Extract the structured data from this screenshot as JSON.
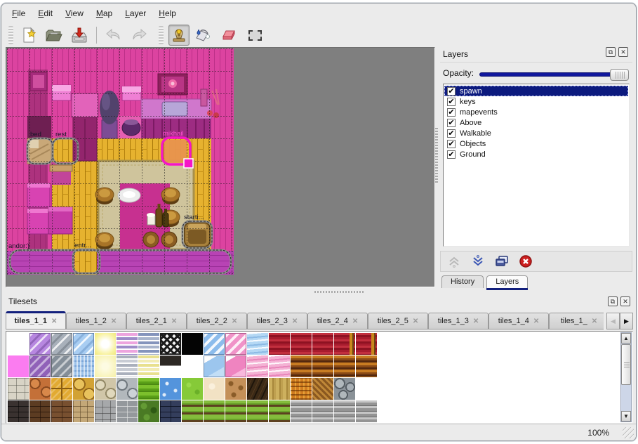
{
  "menu": {
    "items": [
      {
        "label": "File"
      },
      {
        "label": "Edit"
      },
      {
        "label": "View"
      },
      {
        "label": "Map"
      },
      {
        "label": "Layer"
      },
      {
        "label": "Help"
      }
    ]
  },
  "toolbar": {
    "buttons": [
      {
        "name": "new-map",
        "icon": "new-file-icon",
        "enabled": true,
        "active": false
      },
      {
        "name": "open",
        "icon": "open-folder-icon",
        "enabled": true,
        "active": false
      },
      {
        "name": "save",
        "icon": "save-icon",
        "enabled": true,
        "active": false
      },
      {
        "name": "undo",
        "icon": "undo-icon",
        "enabled": false,
        "active": false
      },
      {
        "name": "redo",
        "icon": "redo-icon",
        "enabled": false,
        "active": false
      },
      {
        "name": "stamp-brush",
        "icon": "stamp-icon",
        "enabled": true,
        "active": true
      },
      {
        "name": "bucket-fill",
        "icon": "bucket-icon",
        "enabled": true,
        "active": false
      },
      {
        "name": "eraser",
        "icon": "eraser-icon",
        "enabled": true,
        "active": false
      },
      {
        "name": "rect-select",
        "icon": "rect-select-icon",
        "enabled": true,
        "active": false
      }
    ]
  },
  "map_view": {
    "background": "#7f7f7f",
    "objects": [
      {
        "label": "bed",
        "selected": false
      },
      {
        "label": "rest",
        "selected": false
      },
      {
        "label": "mikhail",
        "selected": true
      },
      {
        "label": "starti...",
        "selected": false
      },
      {
        "label": "entr...",
        "selected": false
      },
      {
        "label": "andor:)",
        "selected": false
      }
    ]
  },
  "layers_panel": {
    "title": "Layers",
    "opacity_label": "Opacity:",
    "opacity_value": 1.0,
    "layers": [
      {
        "name": "spawn",
        "checked": true,
        "selected": true
      },
      {
        "name": "keys",
        "checked": true,
        "selected": false
      },
      {
        "name": "mapevents",
        "checked": true,
        "selected": false
      },
      {
        "name": "Above",
        "checked": true,
        "selected": false
      },
      {
        "name": "Walkable",
        "checked": true,
        "selected": false
      },
      {
        "name": "Objects",
        "checked": true,
        "selected": false
      },
      {
        "name": "Ground",
        "checked": true,
        "selected": false
      }
    ],
    "buttons": [
      {
        "name": "raise-layer",
        "enabled": false
      },
      {
        "name": "lower-layer",
        "enabled": true
      },
      {
        "name": "duplicate-layer",
        "enabled": true
      },
      {
        "name": "delete-layer",
        "enabled": true
      }
    ],
    "tabs": [
      {
        "label": "History",
        "active": false
      },
      {
        "label": "Layers",
        "active": true
      }
    ]
  },
  "tilesets_panel": {
    "title": "Tilesets",
    "tabs": [
      {
        "label": "tiles_1_1",
        "active": true
      },
      {
        "label": "tiles_1_2",
        "active": false
      },
      {
        "label": "tiles_2_1",
        "active": false
      },
      {
        "label": "tiles_2_2",
        "active": false
      },
      {
        "label": "tiles_2_3",
        "active": false
      },
      {
        "label": "tiles_2_4",
        "active": false
      },
      {
        "label": "tiles_2_5",
        "active": false
      },
      {
        "label": "tiles_1_3",
        "active": false
      },
      {
        "label": "tiles_1_4",
        "active": false
      },
      {
        "label": "tiles_1_",
        "active": false
      }
    ],
    "tile_rows": [
      [
        "empty",
        "glass-purple",
        "glass-gray",
        "glass-blue",
        "glow-yellow",
        "stripes-pink",
        "stripes-slate",
        "lattice",
        "black",
        "glass-blue2",
        "glass-pink",
        "waves-blue",
        "curtain-red",
        "curtain-red",
        "curtain-red",
        "curtain-red-trim",
        "curtain-red-trim"
      ],
      [
        "pink-solid",
        "glass-purple-dark",
        "glass-gray-dark",
        "water-ripple",
        "pale-yellow",
        "stripes-gray",
        "stripes-cream",
        "sign-dark",
        "empty",
        "glass-blue-half",
        "glass-pink2",
        "waves-pink",
        "waves-pink",
        "wood-brown",
        "wood-brown",
        "wood-brown",
        "wood-brown"
      ],
      [
        "stone-blocks",
        "cobble-orange",
        "tile-gold",
        "stone-gold",
        "cobble-beige",
        "cobble-gray",
        "grass-stripes",
        "water-sparkle",
        "grass-green",
        "sand-pale",
        "dirt-spots",
        "bark-dark",
        "planks-tan",
        "weave-orange",
        "herringbone",
        "stones-gray",
        "empty"
      ],
      [
        "brick-dark",
        "brick-brown",
        "brick-brown2",
        "stone-tan",
        "stonewall-gray",
        "brick-gray",
        "hedge-green",
        "brick-blue",
        "farm-rows",
        "farm-rows",
        "farm-rows",
        "farm-rows",
        "farm-rows",
        "planks-gray",
        "planks-gray",
        "planks-gray",
        "planks-gray"
      ]
    ]
  },
  "status_bar": {
    "zoom_level": "100%"
  },
  "icons": {
    "float": "⧉",
    "close": "✕",
    "check": "✔",
    "tab_close": "✕",
    "left": "◀",
    "right": "▶",
    "up": "▲",
    "down": "▼"
  },
  "colors": {
    "selection_navy": "#0c1a7e",
    "accent_navy": "#121f7c",
    "map_magenta": "#dc43a0",
    "floor_yellow": "#e6b22f",
    "rug_tan": "#cfc49c",
    "bottom_wall_purple": "#b843b4",
    "selected_object_pink": "#f516c6",
    "slider_navy": "#10179c"
  }
}
